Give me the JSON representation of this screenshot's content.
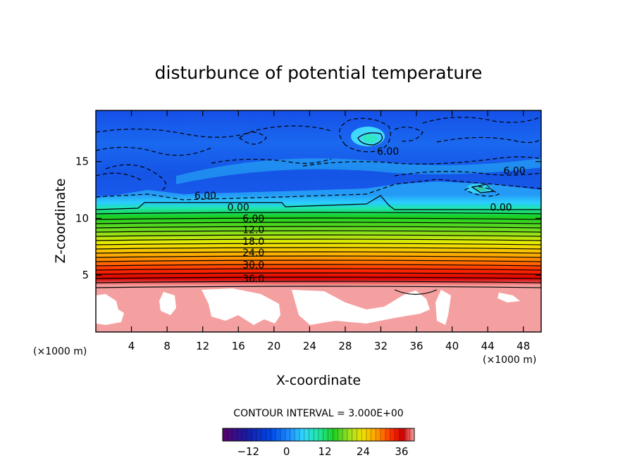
{
  "chart_data": {
    "type": "heatmap",
    "title": "disturbunce of potential temperature",
    "xlabel": "X-coordinate",
    "ylabel": "Z-coordinate",
    "x_unit_left": "(×1000 m)",
    "x_unit_right": "(×1000 m)",
    "xlim": [
      0,
      50
    ],
    "ylim": [
      0,
      19.5
    ],
    "x_ticks": [
      4,
      8,
      12,
      16,
      20,
      24,
      28,
      32,
      36,
      40,
      44,
      48
    ],
    "y_ticks": [
      5,
      10,
      15
    ],
    "contour_interval_text": "CONTOUR INTERVAL = 3.000E+00",
    "contour_labels": [
      {
        "text": "6.00",
        "x": 32.8,
        "z": 15.9
      },
      {
        "text": "6.00",
        "x": 47.0,
        "z": 14.2
      },
      {
        "text": "6.00",
        "x": 12.3,
        "z": 12.0
      },
      {
        "text": "0.00",
        "x": 16.0,
        "z": 11.0
      },
      {
        "text": "0.00",
        "x": 45.5,
        "z": 11.0
      },
      {
        "text": "6.00",
        "x": 17.7,
        "z": 10.0
      },
      {
        "text": "12.0",
        "x": 17.7,
        "z": 9.0
      },
      {
        "text": "18.0",
        "x": 17.7,
        "z": 8.0
      },
      {
        "text": "24.0",
        "x": 17.7,
        "z": 7.0
      },
      {
        "text": "30.0",
        "x": 17.7,
        "z": 5.9
      },
      {
        "text": "36.0",
        "x": 17.7,
        "z": 4.7
      }
    ],
    "colorbar": {
      "min": -20,
      "max": 40,
      "ticks": [
        -12,
        0,
        12,
        24,
        36
      ],
      "colors": [
        "#5a006a",
        "#1a1aa0",
        "#0040e0",
        "#1e90ff",
        "#30d5ff",
        "#20e8a0",
        "#20d020",
        "#90e020",
        "#f0e000",
        "#ffa000",
        "#ff3000",
        "#d00000",
        "#f5a0a0"
      ]
    }
  }
}
